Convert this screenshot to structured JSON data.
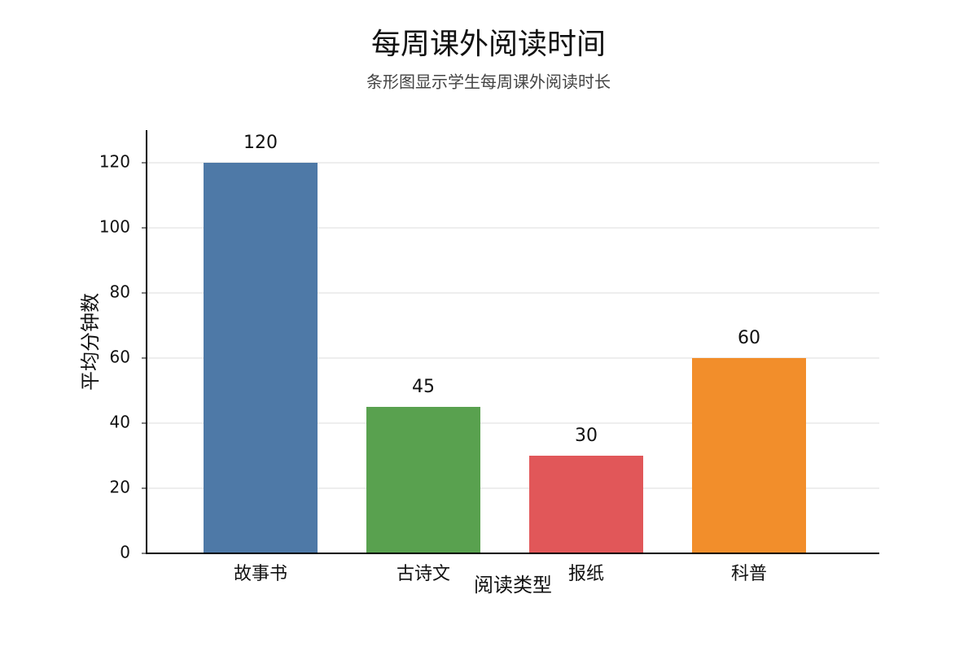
{
  "chart_data": {
    "type": "bar",
    "title": "每周课外阅读时间",
    "subtitle": "条形图显示学生每周课外阅读时长",
    "x_label": "阅读类型",
    "y_label": "平均分钟数",
    "categories": [
      "故事书",
      "古诗文",
      "报纸",
      "科普"
    ],
    "values": [
      120,
      45,
      30,
      60
    ],
    "colors": [
      "#4e79a7",
      "#59a14f",
      "#e15759",
      "#f28e2b"
    ],
    "ylim": [
      0,
      130
    ],
    "yticks": [
      0,
      20,
      40,
      60,
      80,
      100,
      120
    ],
    "grid": true
  }
}
